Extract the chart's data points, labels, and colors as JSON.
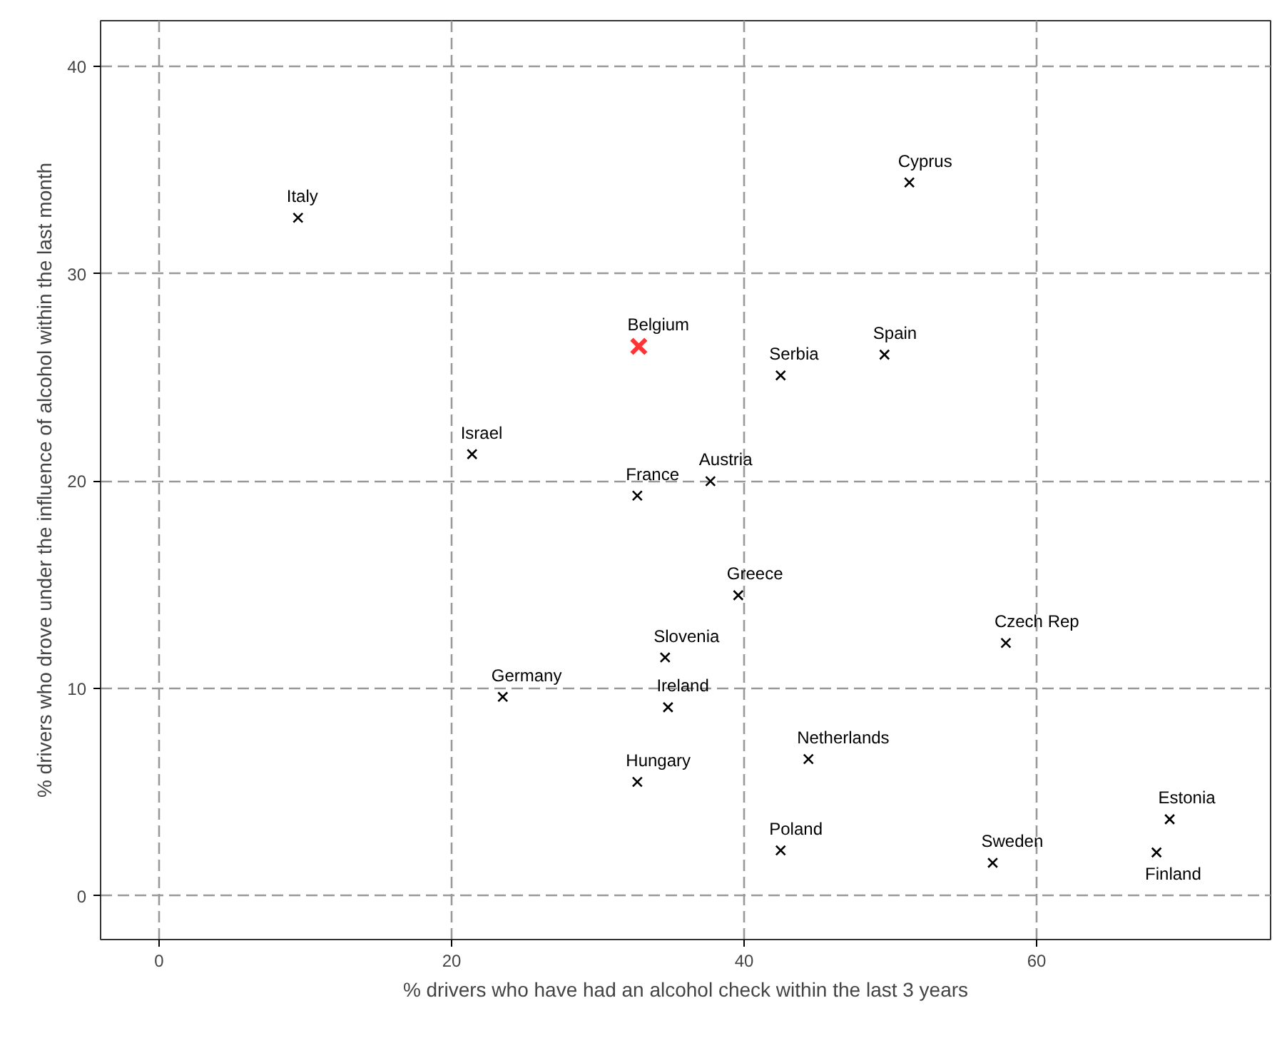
{
  "chart_data": {
    "type": "scatter",
    "xlabel": "% drivers who have had an alcohol check within the last 3 years",
    "ylabel": "% drivers who drove under the influence of alcohol within the last month",
    "xlim": [
      -4,
      76
    ],
    "ylim": [
      -2.1,
      42.2
    ],
    "xticks": [
      0,
      20,
      40,
      60
    ],
    "yticks": [
      0,
      10,
      20,
      30,
      40
    ],
    "grid": true,
    "marker": "cross",
    "series": [
      {
        "color": "#000000",
        "x": [
          9.5,
          51.3,
          42.5,
          49.6,
          21.4,
          32.7,
          37.7,
          39.6,
          57.9,
          34.6,
          23.5,
          34.8,
          32.7,
          44.4,
          42.5,
          57.0,
          69.1,
          68.2
        ],
        "values": [
          32.7,
          34.4,
          25.1,
          26.1,
          21.3,
          19.3,
          20.0,
          14.5,
          12.2,
          11.5,
          9.6,
          9.1,
          5.5,
          6.6,
          2.2,
          1.6,
          3.7,
          2.1
        ]
      },
      {
        "color": "#ff3333",
        "x": [
          32.8
        ],
        "values": [
          26.5
        ]
      }
    ],
    "annotations": [
      {
        "text": "Italy",
        "x": 9.5,
        "y": 32.7
      },
      {
        "text": "Cyprus",
        "x": 51.3,
        "y": 34.4
      },
      {
        "text": "Belgium",
        "x": 32.8,
        "y": 26.5
      },
      {
        "text": "Serbia",
        "x": 42.5,
        "y": 25.1
      },
      {
        "text": "Spain",
        "x": 49.6,
        "y": 26.1
      },
      {
        "text": "Israel",
        "x": 21.4,
        "y": 21.3
      },
      {
        "text": "France",
        "x": 32.7,
        "y": 19.3
      },
      {
        "text": "Austria",
        "x": 37.7,
        "y": 20.0
      },
      {
        "text": "Greece",
        "x": 39.6,
        "y": 14.5
      },
      {
        "text": "Czech Rep",
        "x": 57.9,
        "y": 12.2
      },
      {
        "text": "Slovenia",
        "x": 34.6,
        "y": 11.5
      },
      {
        "text": "Germany",
        "x": 23.5,
        "y": 9.6
      },
      {
        "text": "Ireland",
        "x": 34.8,
        "y": 9.1
      },
      {
        "text": "Hungary",
        "x": 32.7,
        "y": 5.5
      },
      {
        "text": "Netherlands",
        "x": 44.4,
        "y": 6.6
      },
      {
        "text": "Poland",
        "x": 42.5,
        "y": 2.2
      },
      {
        "text": "Sweden",
        "x": 57.0,
        "y": 1.6
      },
      {
        "text": "Estonia",
        "x": 69.1,
        "y": 3.7
      },
      {
        "text": "Finland",
        "x": 68.2,
        "y": 2.1
      }
    ]
  }
}
